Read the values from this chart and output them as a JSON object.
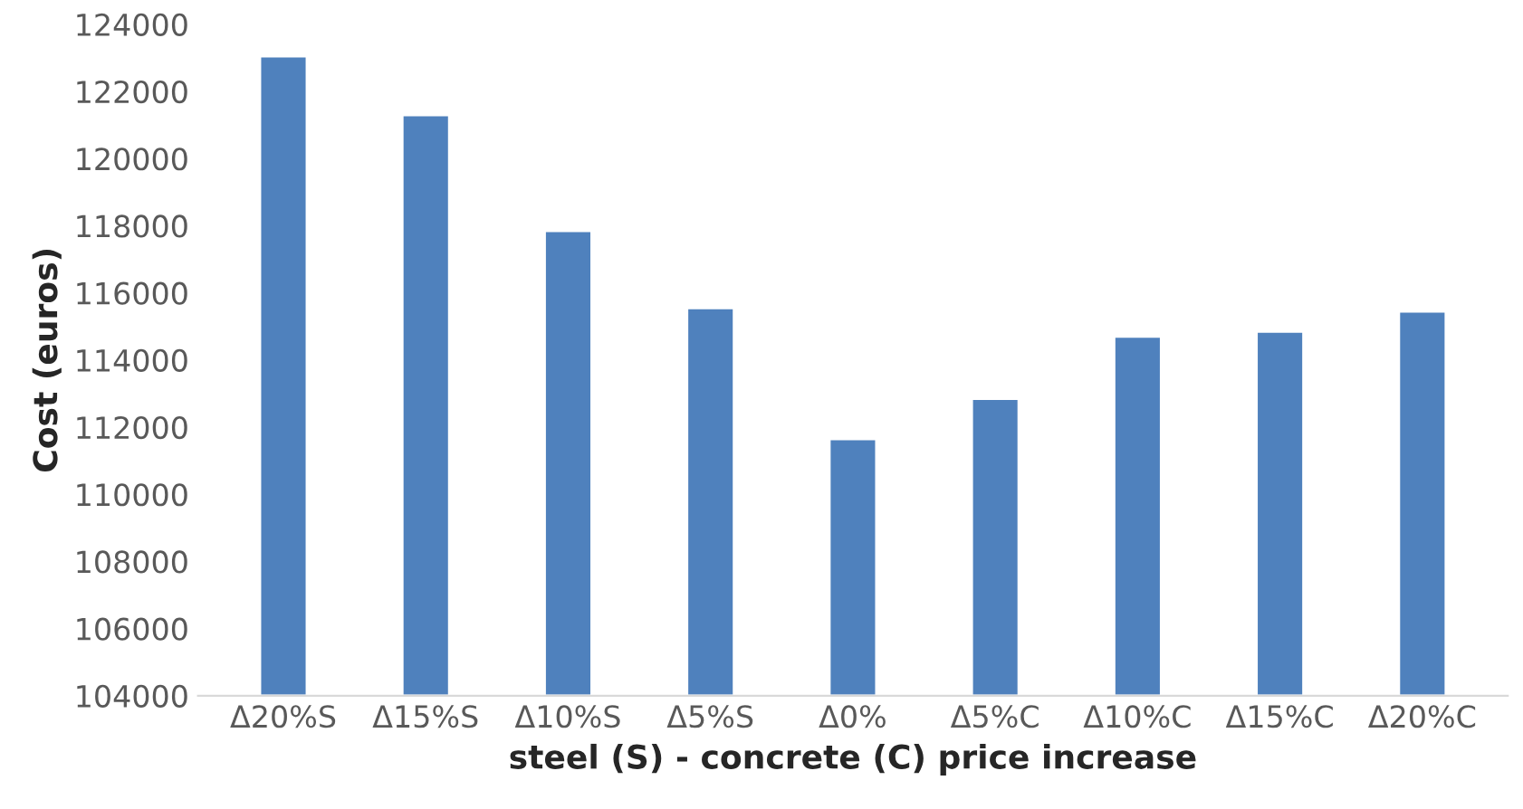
{
  "chart_data": {
    "type": "bar",
    "xlabel": "steel (S) - concrete (C) price increase",
    "ylabel": "Cost (euros)",
    "categories": [
      "Δ20%S",
      "Δ15%S",
      "Δ10%S",
      "Δ5%S",
      "Δ0%",
      "Δ5%C",
      "Δ10%C",
      "Δ15%C",
      "Δ20%C"
    ],
    "values": [
      123050,
      121300,
      117850,
      115550,
      111650,
      112850,
      114700,
      114850,
      115450
    ],
    "color": "#4f81bd",
    "ylim": [
      104000,
      124000
    ],
    "yticks": [
      104000,
      106000,
      108000,
      110000,
      112000,
      114000,
      116000,
      118000,
      120000,
      122000,
      124000
    ],
    "grid": false
  }
}
